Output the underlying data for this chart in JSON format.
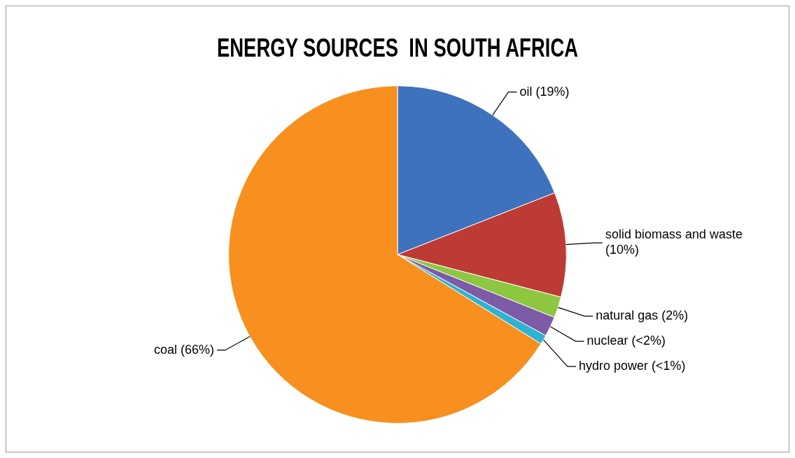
{
  "chart_data": {
    "type": "pie",
    "title": "ENERGY SOURCES  IN SOUTH AFRICA",
    "categories": [
      "oil",
      "solid biomass and waste",
      "natural gas",
      "nuclear",
      "hydro power",
      "coal"
    ],
    "values": [
      19,
      10,
      2,
      1.9,
      0.9,
      66
    ],
    "value_labels": [
      "(19%)",
      "(10%)",
      "(2%)",
      "(<2%)",
      "(<1%)",
      "(66%)"
    ],
    "colors": [
      "#3f72bd",
      "#be3a34",
      "#8dc63f",
      "#7d5ba6",
      "#2fb3d1",
      "#f7901e"
    ],
    "legend": false
  }
}
